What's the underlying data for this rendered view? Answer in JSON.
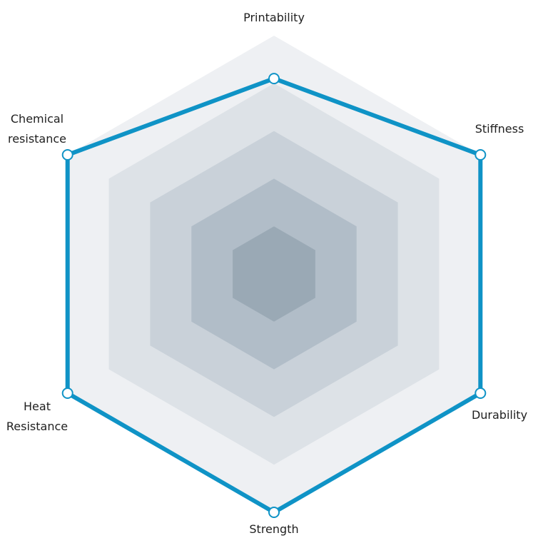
{
  "chart_data": {
    "type": "radar",
    "axes": [
      "Printability",
      "Stiffness",
      "Durability",
      "Strength",
      "Heat Resistance",
      "Chemical resistance"
    ],
    "axis_label_lines": [
      [
        "Printability"
      ],
      [
        "Stiffness"
      ],
      [
        "Durability"
      ],
      [
        "Strength"
      ],
      [
        "Heat",
        "Resistance"
      ],
      [
        "Chemical",
        "resistance"
      ]
    ],
    "levels": 5,
    "range": [
      0,
      5
    ],
    "series": [
      {
        "values": [
          4.1,
          5,
          5,
          5,
          5,
          5
        ]
      }
    ],
    "colors": {
      "series_line": "#0f93c6",
      "marker_fill": "#ffffff",
      "band_fills": [
        "#eef0f3",
        "#dde2e7",
        "#c9d1d9",
        "#b1bdc8",
        "#9aa9b5"
      ]
    }
  }
}
